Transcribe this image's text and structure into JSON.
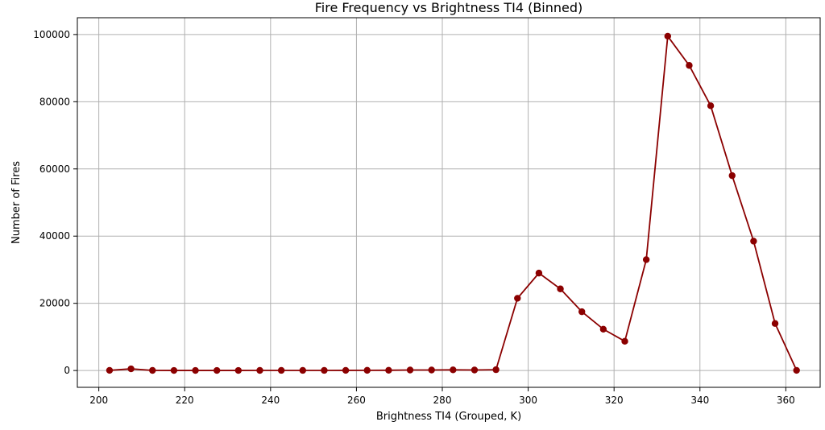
{
  "chart_data": {
    "type": "line",
    "title": "Fire Frequency vs Brightness TI4 (Binned)",
    "xlabel": "Brightness TI4 (Grouped, K)",
    "ylabel": "Number of Fires",
    "xlim": [
      195,
      368
    ],
    "ylim": [
      -5000,
      105000
    ],
    "x_ticks": [
      200,
      220,
      240,
      260,
      280,
      300,
      320,
      340,
      360
    ],
    "y_ticks": [
      0,
      20000,
      40000,
      60000,
      80000,
      100000
    ],
    "x_tick_labels": [
      "200",
      "220",
      "240",
      "260",
      "280",
      "300",
      "320",
      "340",
      "360"
    ],
    "y_tick_labels": [
      "0",
      "20000",
      "40000",
      "60000",
      "80000",
      "100000"
    ],
    "grid": true,
    "series": [
      {
        "color": "#8b0000",
        "marker": "circle",
        "x": [
          202.5,
          207.5,
          212.5,
          217.5,
          222.5,
          227.5,
          232.5,
          237.5,
          242.5,
          247.5,
          252.5,
          257.5,
          262.5,
          267.5,
          272.5,
          277.5,
          282.5,
          287.5,
          292.5,
          297.5,
          302.5,
          307.5,
          312.5,
          317.5,
          322.5,
          327.5,
          332.5,
          337.5,
          342.5,
          347.5,
          352.5,
          357.5,
          362.5
        ],
        "y": [
          50,
          500,
          30,
          20,
          20,
          20,
          20,
          30,
          40,
          40,
          40,
          50,
          60,
          80,
          150,
          150,
          200,
          150,
          250,
          21500,
          29000,
          24300,
          17500,
          12300,
          8700,
          33000,
          99500,
          90800,
          78800,
          58000,
          38500,
          14000,
          50
        ]
      }
    ]
  }
}
